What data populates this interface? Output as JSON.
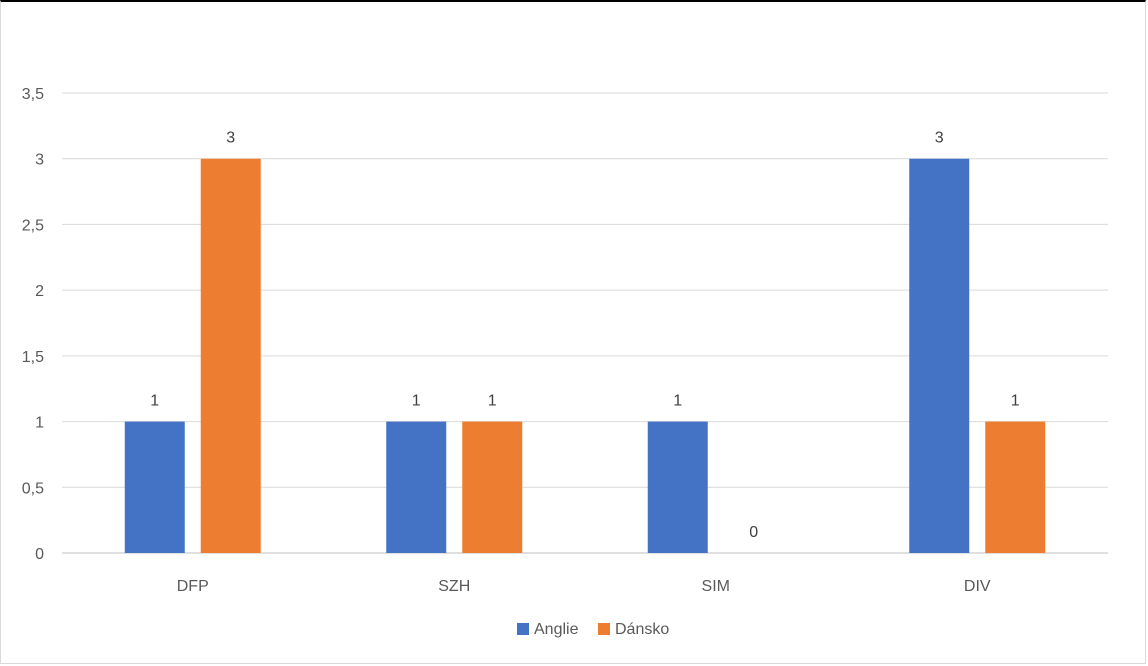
{
  "chart_data": {
    "type": "bar",
    "title": "",
    "xlabel": "",
    "ylabel": "",
    "categories": [
      "DFP",
      "SZH",
      "SIM",
      "DIV"
    ],
    "series": [
      {
        "name": "Anglie",
        "values": [
          1,
          1,
          1,
          3
        ],
        "color": "#4472C4"
      },
      {
        "name": "Dánsko",
        "values": [
          3,
          1,
          0,
          1
        ],
        "color": "#ED7D31"
      }
    ],
    "ylim": [
      0,
      3.5
    ],
    "yticks": [
      "0",
      "0,5",
      "1",
      "1,5",
      "2",
      "2,5",
      "3",
      "3,5"
    ],
    "data_labels": true,
    "grid": true,
    "legend_position": "bottom"
  }
}
